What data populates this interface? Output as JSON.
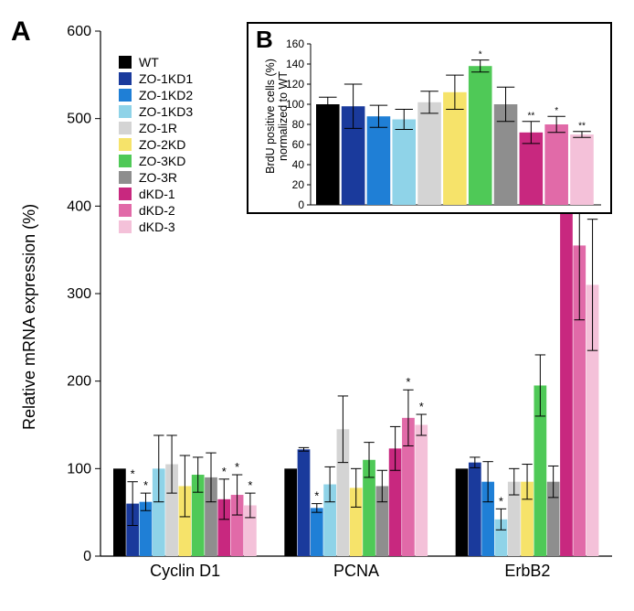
{
  "panel_labels": {
    "A": "A",
    "B": "B"
  },
  "colors": {
    "series": [
      "#000000",
      "#1a3a9c",
      "#1f7fd6",
      "#8fd3e8",
      "#d4d4d4",
      "#f6e36a",
      "#4fc957",
      "#8e8e8e",
      "#c8287f",
      "#e16aa8",
      "#f4c1d9"
    ],
    "legend_labels": [
      "WT",
      "ZO-1KD1",
      "ZO-1KD2",
      "ZO-1KD3",
      "ZO-1R",
      "ZO-2KD",
      "ZO-3KD",
      "ZO-3R",
      "dKD-1",
      "dKD-2",
      "dKD-3"
    ],
    "axis": "#000000",
    "errbar": "#000000"
  },
  "main": {
    "ylabel": "Relative mRNA expression (%)",
    "ylim": [
      0,
      600
    ],
    "yticks": [
      0,
      100,
      200,
      300,
      400,
      500,
      600
    ],
    "ytick_labels": [
      "0",
      "100",
      "200",
      "300",
      "400",
      "500",
      "600"
    ],
    "label_fontsize": 18,
    "tick_fontsize": 16,
    "categories": [
      "Cyclin D1",
      "PCNA",
      "ErbB2"
    ],
    "groups": [
      {
        "name": "Cyclin D1",
        "values": [
          100,
          60,
          62,
          100,
          105,
          80,
          93,
          90,
          65,
          70,
          58
        ],
        "err": [
          0,
          25,
          10,
          38,
          33,
          35,
          20,
          28,
          23,
          23,
          14
        ],
        "sig": [
          "",
          "*",
          "*",
          "",
          "",
          "",
          "",
          "",
          "*",
          "*",
          "*"
        ]
      },
      {
        "name": "PCNA",
        "values": [
          100,
          122,
          55,
          82,
          145,
          78,
          110,
          80,
          123,
          158,
          150
        ],
        "err": [
          0,
          2,
          5,
          20,
          38,
          22,
          20,
          18,
          25,
          32,
          12
        ],
        "sig": [
          "",
          "",
          "*",
          "",
          "",
          "",
          "",
          "",
          "",
          "*",
          "*"
        ]
      },
      {
        "name": "ErbB2",
        "values": [
          100,
          107,
          85,
          42,
          85,
          85,
          195,
          85,
          485,
          355,
          310
        ],
        "err": [
          0,
          6,
          23,
          12,
          15,
          20,
          35,
          18,
          85,
          85,
          75
        ],
        "sig": [
          "",
          "",
          "",
          "*",
          "",
          "",
          "",
          "",
          "*",
          "*",
          "*"
        ]
      }
    ]
  },
  "inset": {
    "ylabel_line1": "BrdU positive cells (%)",
    "ylabel_line2": "normalized to WT",
    "ylim": [
      0,
      160
    ],
    "yticks": [
      0,
      20,
      40,
      60,
      80,
      100,
      120,
      140,
      160
    ],
    "values": [
      100,
      98,
      88,
      85,
      102,
      112,
      138,
      100,
      72,
      80,
      70
    ],
    "err": [
      7,
      22,
      11,
      10,
      11,
      17,
      6,
      17,
      11,
      8,
      3
    ],
    "sig": [
      "",
      "",
      "",
      "",
      "",
      "",
      "*",
      "",
      "**",
      "*",
      "**"
    ]
  }
}
